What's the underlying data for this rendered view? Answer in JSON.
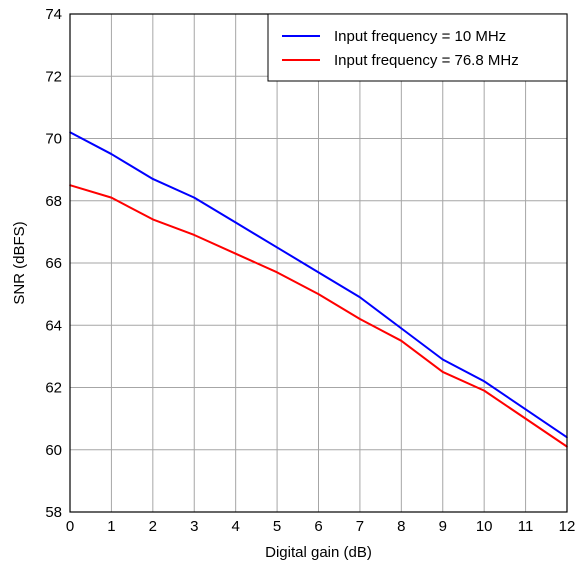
{
  "chart_data": {
    "type": "line",
    "xlabel": "Digital gain (dB)",
    "ylabel": "SNR (dBFS)",
    "xlim": [
      0,
      12
    ],
    "ylim": [
      58,
      74
    ],
    "xticks": [
      0,
      1,
      2,
      3,
      4,
      5,
      6,
      7,
      8,
      9,
      10,
      11,
      12
    ],
    "yticks": [
      58,
      60,
      62,
      64,
      66,
      68,
      70,
      72,
      74
    ],
    "grid": true,
    "legend_position": "top-right",
    "x": [
      0,
      1,
      2,
      3,
      4,
      5,
      6,
      7,
      8,
      9,
      10,
      11,
      12
    ],
    "series": [
      {
        "name": "Input frequency = 10 MHz",
        "color": "#0000ff",
        "values": [
          70.2,
          69.5,
          68.7,
          68.1,
          67.3,
          66.5,
          65.7,
          64.9,
          63.9,
          62.9,
          62.2,
          61.3,
          60.4
        ]
      },
      {
        "name": "Input frequency = 76.8 MHz",
        "color": "#ff0000",
        "values": [
          68.5,
          68.1,
          67.4,
          66.9,
          66.3,
          65.7,
          65.0,
          64.2,
          63.5,
          62.5,
          61.9,
          61.0,
          60.1
        ]
      }
    ]
  }
}
